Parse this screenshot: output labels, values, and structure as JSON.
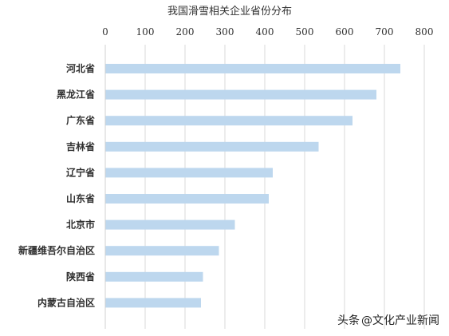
{
  "chart_data": {
    "type": "bar",
    "orientation": "horizontal",
    "title": "我国滑雪相关企业省份分布",
    "xlabel": "",
    "ylabel": "",
    "xlim": [
      0,
      800
    ],
    "x_ticks": [
      0,
      100,
      200,
      300,
      400,
      500,
      600,
      700,
      800
    ],
    "x_axis_position": "top",
    "grid": true,
    "bar_color": "#bdd7ee",
    "categories": [
      "河北省",
      "黑龙江省",
      "广东省",
      "吉林省",
      "辽宁省",
      "山东省",
      "北京市",
      "新疆维吾尔自治区",
      "陕西省",
      "内蒙古自治区"
    ],
    "values": [
      740,
      680,
      620,
      535,
      420,
      410,
      325,
      285,
      245,
      240
    ]
  },
  "watermark": {
    "prefix": "头条",
    "account": "@文化产业新闻"
  }
}
